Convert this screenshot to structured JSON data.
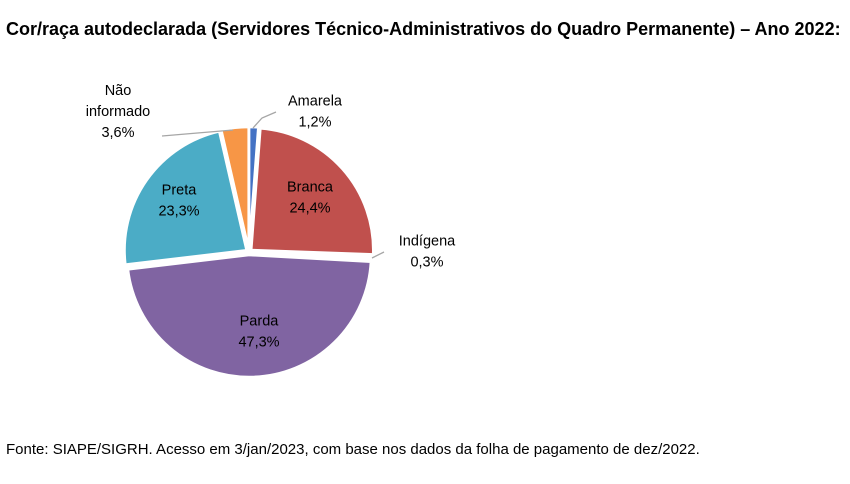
{
  "title": "Cor/raça autodeclarada (Servidores Técnico-Administrativos do Quadro Permanente) – Ano 2022:",
  "source": "Fonte: SIAPE/SIGRH. Acesso em 3/jan/2023, com base nos dados da folha de pagamento de dez/2022.",
  "chart_data": {
    "type": "pie",
    "title": "Cor/raça autodeclarada (Servidores Técnico-Administrativos do Quadro Permanente) – Ano 2022:",
    "unit": "%",
    "slices": [
      {
        "label": "Amarela",
        "value": 1.2,
        "display": "1,2%",
        "color": "#4472C4"
      },
      {
        "label": "Branca",
        "value": 24.4,
        "display": "24,4%",
        "color": "#C0504D"
      },
      {
        "label": "Indígena",
        "value": 0.3,
        "display": "0,3%",
        "color": "#9BBB59"
      },
      {
        "label": "Parda",
        "value": 47.3,
        "display": "47,3%",
        "color": "#8064A2"
      },
      {
        "label": "Preta",
        "value": 23.3,
        "display": "23,3%",
        "color": "#4BACC6"
      },
      {
        "label": "Não informado",
        "value": 3.6,
        "display": "3,6%",
        "color": "#F79646"
      }
    ],
    "legend": "none"
  }
}
